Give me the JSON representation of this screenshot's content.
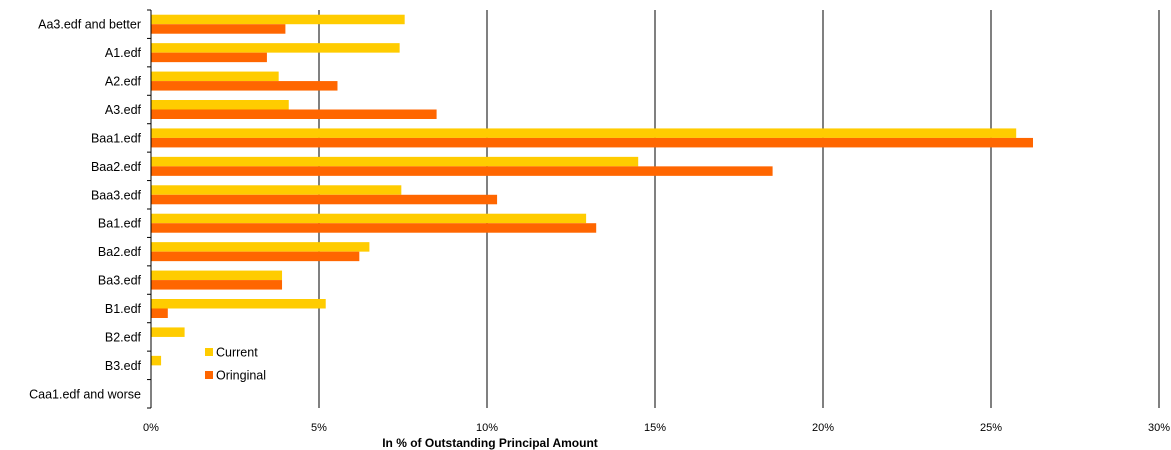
{
  "chart_data": {
    "type": "bar",
    "orientation": "horizontal",
    "title": "",
    "xlabel": "In % of Outstanding Principal Amount",
    "ylabel": "",
    "xlim": [
      0,
      30
    ],
    "x_ticks": [
      0,
      5,
      10,
      15,
      20,
      25,
      30
    ],
    "x_tick_labels": [
      "0%",
      "5%",
      "10%",
      "15%",
      "20%",
      "25%",
      "30%"
    ],
    "grid": "vertical",
    "legend": "inside-bottom-left",
    "categories": [
      "Aa3.edf and better",
      "A1.edf",
      "A2.edf",
      "A3.edf",
      "Baa1.edf",
      "Baa2.edf",
      "Baa3.edf",
      "Ba1.edf",
      "Ba2.edf",
      "Ba3.edf",
      "B1.edf",
      "B2.edf",
      "B3.edf",
      "Caa1.edf and worse"
    ],
    "series": [
      {
        "name": "Current",
        "color": "#FFCC00",
        "values": [
          7.55,
          7.4,
          3.8,
          4.1,
          25.75,
          14.5,
          7.45,
          12.95,
          6.5,
          3.9,
          5.2,
          1.0,
          0.3,
          0.0
        ]
      },
      {
        "name": "Oringinal",
        "color": "#FF6600",
        "values": [
          4.0,
          3.45,
          5.55,
          8.5,
          26.25,
          18.5,
          10.3,
          13.25,
          6.2,
          3.9,
          0.5,
          0.0,
          0.0,
          0.0
        ]
      }
    ]
  }
}
